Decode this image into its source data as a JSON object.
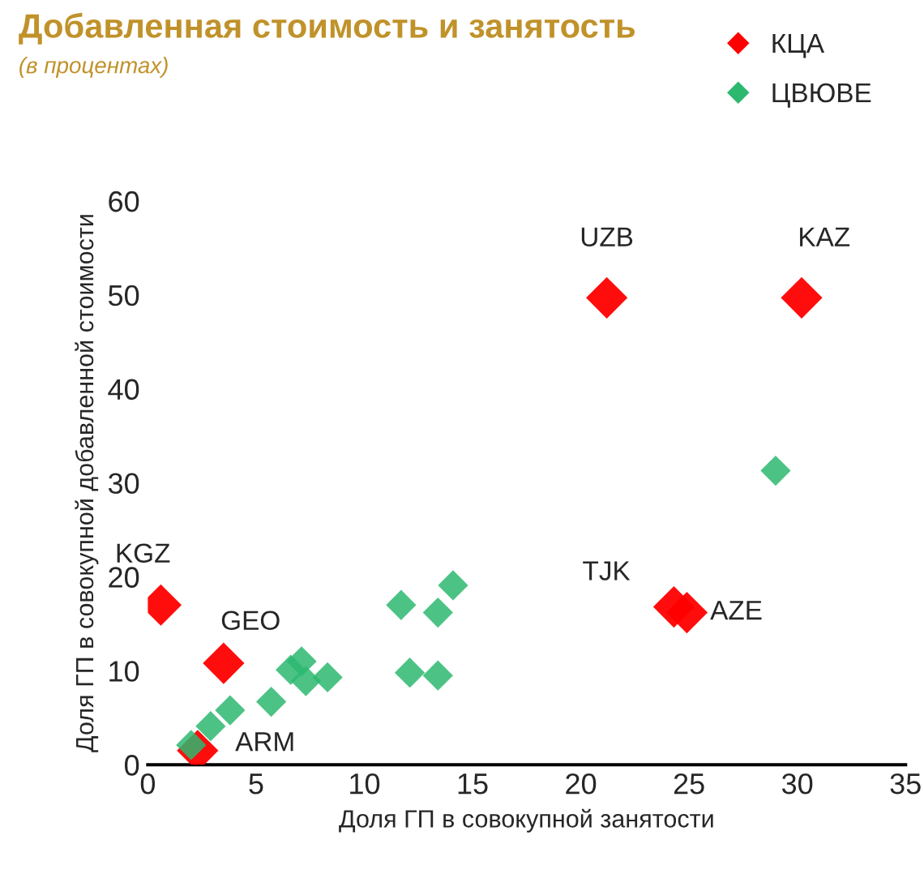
{
  "chart_data": {
    "type": "scatter",
    "title": "Добавленная стоимость и занятость",
    "subtitle": "(в процентах)",
    "xlabel": "Доля ГП в совокупной занятости",
    "ylabel": "Доля ГП в совокупной добавленной стоимости",
    "xlim": [
      0,
      35
    ],
    "ylim": [
      0,
      60
    ],
    "xticks": [
      0,
      5,
      10,
      15,
      20,
      25,
      30,
      35
    ],
    "yticks": [
      0,
      10,
      20,
      30,
      40,
      50,
      60
    ],
    "grid": false,
    "legend": "top right",
    "marker": "diamond",
    "series": [
      {
        "name": "КЦА",
        "color": "#ff0000",
        "x": [
          0.6,
          3.5,
          2.3,
          21.2,
          30.2,
          24.3,
          24.9
        ],
        "values": [
          17,
          10.8,
          1.5,
          49.7,
          49.7,
          16.8,
          16.2
        ]
      },
      {
        "name": "ЦВЮВЕ",
        "color": "#2db870",
        "x": [
          2.0,
          2.9,
          3.8,
          5.7,
          6.6,
          7.1,
          7.3,
          8.3,
          11.7,
          13.4,
          14.1,
          12.1,
          13.4,
          29.0
        ],
        "values": [
          2.1,
          4.1,
          5.8,
          6.7,
          10.1,
          11,
          8.9,
          9.3,
          17,
          16.2,
          19.1,
          9.8,
          9.5,
          31.3
        ]
      }
    ],
    "annotations": [
      {
        "text": "KGZ",
        "x": 0.6,
        "y": 17
      },
      {
        "text": "GEO",
        "x": 3.5,
        "y": 10.8
      },
      {
        "text": "ARM",
        "x": 2.3,
        "y": 1.5
      },
      {
        "text": "UZB",
        "x": 21.2,
        "y": 49.7
      },
      {
        "text": "KAZ",
        "x": 30.2,
        "y": 49.7
      },
      {
        "text": "TJK",
        "x": 24.3,
        "y": 16.8
      },
      {
        "text": "AZE",
        "x": 24.9,
        "y": 16.2
      }
    ]
  }
}
